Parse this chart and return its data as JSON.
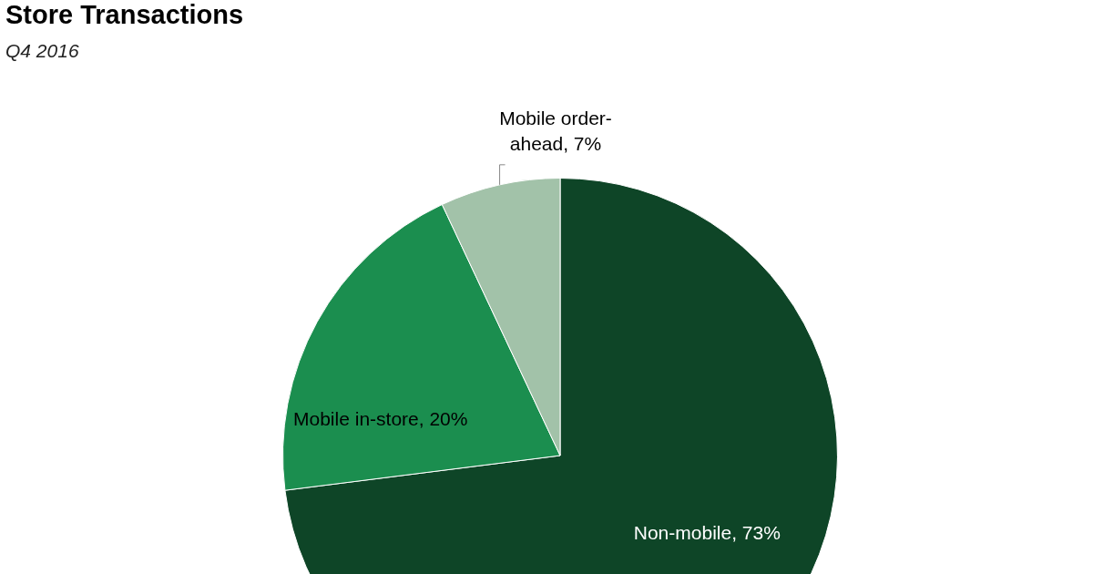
{
  "chart_data": {
    "type": "pie",
    "title": "Store Transactions",
    "subtitle": "Q4 2016",
    "categories": [
      "Non-mobile",
      "Mobile in-store",
      "Mobile order-ahead"
    ],
    "values": [
      73,
      20,
      7
    ],
    "value_labels": [
      "73%",
      "20%",
      "7%"
    ],
    "colors": [
      "#0e4527",
      "#1b8e4f",
      "#a2c2a9"
    ],
    "legend": false
  }
}
